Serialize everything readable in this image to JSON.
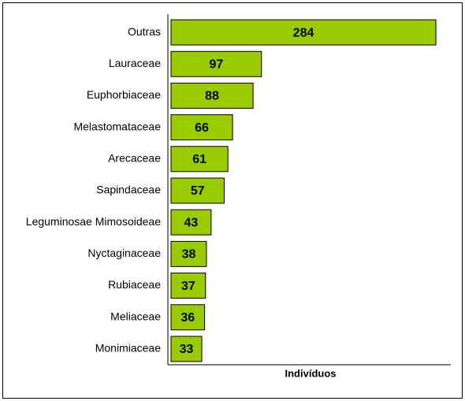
{
  "chart_data": {
    "type": "barh",
    "categories": [
      "Outras",
      "Lauraceae",
      "Euphorbiaceae",
      "Melastomataceae",
      "Arecaceae",
      "Sapindaceae",
      "Leguminosae Mimosoideae",
      "Nyctaginaceae",
      "Rubiaceae",
      "Meliaceae",
      "Monimiaceae"
    ],
    "values": [
      284,
      97,
      88,
      66,
      61,
      57,
      43,
      38,
      37,
      36,
      33
    ],
    "color": "#99cc00",
    "xlabel": "Indivíduos",
    "xlim": [
      0,
      300
    ]
  }
}
